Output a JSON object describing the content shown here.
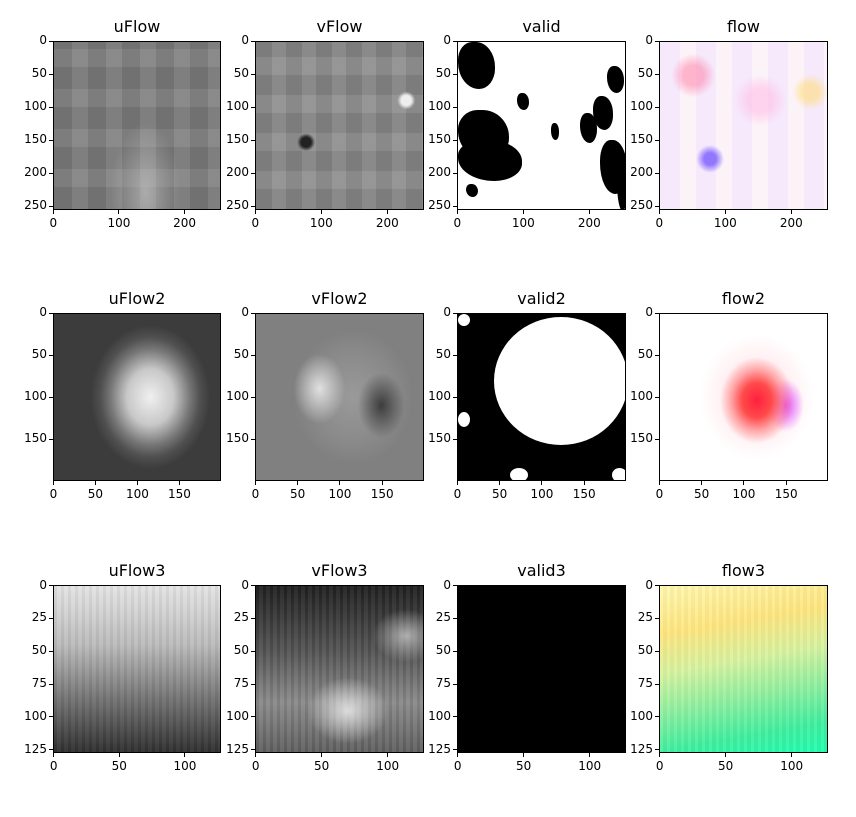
{
  "panels": {
    "uFlow": {
      "title": "uFlow",
      "icon": "grayscale-flow-image"
    },
    "vFlow": {
      "title": "vFlow",
      "icon": "grayscale-flow-image"
    },
    "valid": {
      "title": "valid",
      "icon": "binary-mask-image"
    },
    "flow": {
      "title": "flow",
      "icon": "color-flow-image"
    },
    "uFlow2": {
      "title": "uFlow2",
      "icon": "grayscale-flow-image"
    },
    "vFlow2": {
      "title": "vFlow2",
      "icon": "grayscale-flow-image"
    },
    "valid2": {
      "title": "valid2",
      "icon": "binary-mask-image"
    },
    "flow2": {
      "title": "flow2",
      "icon": "color-flow-image"
    },
    "uFlow3": {
      "title": "uFlow3",
      "icon": "grayscale-flow-image"
    },
    "vFlow3": {
      "title": "vFlow3",
      "icon": "grayscale-flow-image"
    },
    "valid3": {
      "title": "valid3",
      "icon": "binary-mask-image"
    },
    "flow3": {
      "title": "flow3",
      "icon": "color-flow-image"
    }
  },
  "axes": {
    "row1": {
      "x_ticks": [
        "0",
        "100",
        "200"
      ],
      "y_ticks": [
        "0",
        "50",
        "100",
        "150",
        "200",
        "250"
      ],
      "extent": 256
    },
    "row2": {
      "x_ticks": [
        "0",
        "50",
        "100",
        "150"
      ],
      "y_ticks": [
        "0",
        "50",
        "100",
        "150"
      ],
      "extent": 200
    },
    "row3": {
      "x_ticks": [
        "0",
        "50",
        "100"
      ],
      "y_ticks": [
        "0",
        "25",
        "50",
        "75",
        "100",
        "125"
      ],
      "extent": 128
    }
  }
}
